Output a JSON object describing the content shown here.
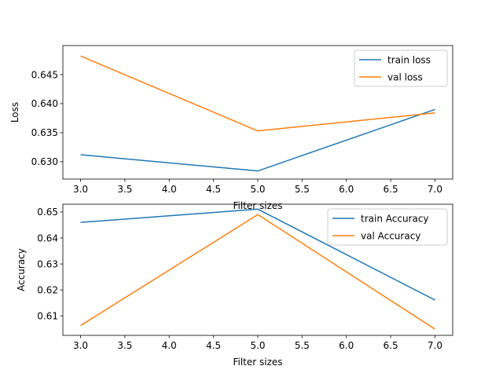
{
  "chart_data": [
    {
      "type": "line",
      "title": "",
      "xlabel": "Filter sizes",
      "ylabel": "Loss",
      "x": [
        3,
        5,
        7
      ],
      "xlim": [
        2.8,
        7.2
      ],
      "ylim": [
        0.627,
        0.65
      ],
      "xticks": [
        "3.0",
        "3.5",
        "4.0",
        "4.5",
        "5.0",
        "5.5",
        "6.0",
        "6.5",
        "7.0"
      ],
      "yticks": [
        "0.630",
        "0.635",
        "0.640",
        "0.645"
      ],
      "grid": false,
      "legend_position": "upper right",
      "series": [
        {
          "name": "train loss",
          "color": "#1f77b4",
          "values": [
            0.6312,
            0.6284,
            0.639
          ]
        },
        {
          "name": "val loss",
          "color": "#ff7f0e",
          "values": [
            0.6482,
            0.6353,
            0.6384
          ]
        }
      ]
    },
    {
      "type": "line",
      "title": "",
      "xlabel": "Filter sizes",
      "ylabel": "Accuracy",
      "x": [
        3,
        5,
        7
      ],
      "xlim": [
        2.8,
        7.2
      ],
      "ylim": [
        0.6025,
        0.653
      ],
      "xticks": [
        "3.0",
        "3.5",
        "4.0",
        "4.5",
        "5.0",
        "5.5",
        "6.0",
        "6.5",
        "7.0"
      ],
      "yticks": [
        "0.61",
        "0.62",
        "0.63",
        "0.64",
        "0.65"
      ],
      "grid": false,
      "legend_position": "upper right",
      "series": [
        {
          "name": "train Accuracy",
          "color": "#1f77b4",
          "values": [
            0.646,
            0.6511,
            0.6161
          ]
        },
        {
          "name": "val Accuracy",
          "color": "#ff7f0e",
          "values": [
            0.6063,
            0.649,
            0.6049
          ]
        }
      ]
    }
  ]
}
